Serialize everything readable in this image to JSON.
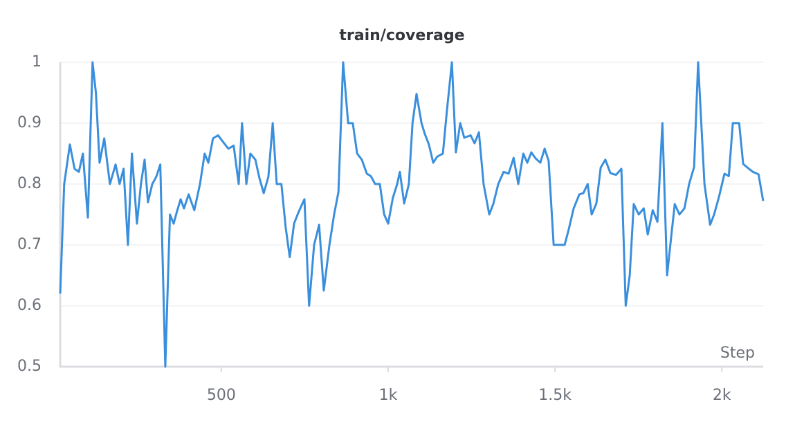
{
  "chart_data": {
    "type": "line",
    "title": "train/coverage",
    "x_label": "Step",
    "x": [
      17,
      29,
      46,
      60,
      73,
      85,
      100,
      114,
      124,
      135,
      149,
      166,
      183,
      195,
      207,
      220,
      232,
      247,
      259,
      270,
      280,
      293,
      305,
      317,
      332,
      346,
      357,
      367,
      378,
      388,
      402,
      419,
      436,
      450,
      461,
      475,
      490,
      504,
      521,
      537,
      552,
      562,
      575,
      587,
      602,
      614,
      627,
      641,
      654,
      666,
      680,
      693,
      705,
      718,
      730,
      743,
      749,
      763,
      778,
      793,
      807,
      824,
      838,
      851,
      865,
      880,
      894,
      907,
      921,
      936,
      948,
      961,
      975,
      988,
      1000,
      1014,
      1027,
      1035,
      1048,
      1062,
      1073,
      1085,
      1100,
      1110,
      1122,
      1135,
      1147,
      1164,
      1176,
      1191,
      1203,
      1216,
      1228,
      1247,
      1259,
      1272,
      1286,
      1303,
      1315,
      1330,
      1346,
      1361,
      1376,
      1390,
      1405,
      1417,
      1429,
      1442,
      1456,
      1469,
      1481,
      1496,
      1512,
      1529,
      1541,
      1556,
      1573,
      1585,
      1598,
      1610,
      1624,
      1637,
      1651,
      1666,
      1683,
      1699,
      1712,
      1724,
      1736,
      1751,
      1766,
      1778,
      1793,
      1807,
      1822,
      1836,
      1849,
      1859,
      1873,
      1888,
      1902,
      1917,
      1929,
      1948,
      1965,
      1977,
      1992,
      2008,
      2021,
      2033,
      2052,
      2064,
      2077,
      2093,
      2110,
      2124
    ],
    "series": [
      {
        "name": "train/coverage",
        "color": "#3a8fdd",
        "values": [
          0.62,
          0.8,
          0.865,
          0.825,
          0.82,
          0.85,
          0.745,
          1,
          0.95,
          0.835,
          0.875,
          0.8,
          0.832,
          0.8,
          0.825,
          0.7,
          0.85,
          0.735,
          0.8,
          0.84,
          0.77,
          0.8,
          0.812,
          0.832,
          0.5,
          0.75,
          0.735,
          0.755,
          0.775,
          0.76,
          0.783,
          0.757,
          0.8,
          0.85,
          0.835,
          0.875,
          0.88,
          0.87,
          0.858,
          0.863,
          0.8,
          0.9,
          0.8,
          0.85,
          0.84,
          0.81,
          0.785,
          0.812,
          0.9,
          0.8,
          0.8,
          0.728,
          0.68,
          0.735,
          0.752,
          0.768,
          0.775,
          0.6,
          0.7,
          0.733,
          0.625,
          0.7,
          0.75,
          0.787,
          1,
          0.9,
          0.9,
          0.85,
          0.84,
          0.817,
          0.813,
          0.8,
          0.8,
          0.75,
          0.735,
          0.777,
          0.8,
          0.82,
          0.768,
          0.8,
          0.9,
          0.948,
          0.9,
          0.882,
          0.865,
          0.835,
          0.845,
          0.85,
          0.92,
          1,
          0.852,
          0.9,
          0.876,
          0.88,
          0.867,
          0.885,
          0.8,
          0.75,
          0.767,
          0.8,
          0.82,
          0.817,
          0.843,
          0.8,
          0.85,
          0.835,
          0.852,
          0.842,
          0.835,
          0.858,
          0.838,
          0.7,
          0.7,
          0.7,
          0.725,
          0.76,
          0.783,
          0.785,
          0.8,
          0.75,
          0.768,
          0.827,
          0.84,
          0.818,
          0.815,
          0.825,
          0.6,
          0.65,
          0.767,
          0.75,
          0.76,
          0.717,
          0.757,
          0.738,
          0.9,
          0.65,
          0.717,
          0.767,
          0.75,
          0.76,
          0.8,
          0.828,
          1,
          0.8,
          0.733,
          0.75,
          0.78,
          0.817,
          0.813,
          0.9,
          0.9,
          0.833,
          0.827,
          0.82,
          0.816,
          0.772
        ]
      }
    ],
    "xlim": [
      17,
      2124
    ],
    "xticks": [
      500,
      {
        "value": 1000,
        "label": "1k"
      },
      {
        "value": 1500,
        "label": "1.5k"
      },
      {
        "value": 2000,
        "label": "2k"
      }
    ],
    "ylim": [
      0.5,
      1
    ],
    "yticks": [
      0.5,
      0.6,
      0.7,
      0.8,
      0.9,
      1
    ],
    "grid": true
  }
}
